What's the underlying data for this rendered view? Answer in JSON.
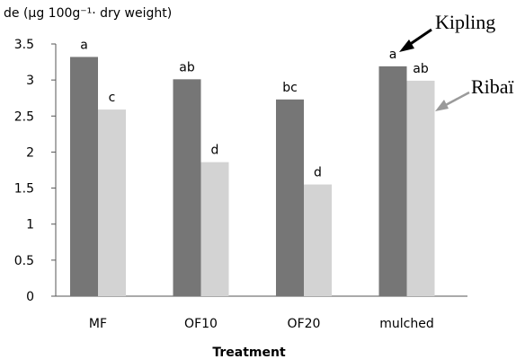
{
  "chart_data": {
    "type": "bar",
    "ylabel": "de (µg 100g⁻¹· dry weight)",
    "xlabel": "Treatment",
    "categories": [
      "MF",
      "OF10",
      "OF20",
      "mulched"
    ],
    "ylim": [
      0,
      3.5
    ],
    "yticks": [
      "0",
      "0.5",
      "1",
      "1.5",
      "2",
      "2.5",
      "3",
      "3.5"
    ],
    "grid": false,
    "series": [
      {
        "name": "Kipling",
        "color": "#767676",
        "values": [
          3.32,
          3.01,
          2.73,
          3.19
        ],
        "letters": [
          "a",
          "ab",
          "bc",
          "a"
        ]
      },
      {
        "name": "Ribaï",
        "color": "#d3d3d3",
        "values": [
          2.59,
          1.86,
          1.55,
          2.99
        ],
        "letters": [
          "c",
          "d",
          "d",
          "ab"
        ]
      }
    ]
  }
}
